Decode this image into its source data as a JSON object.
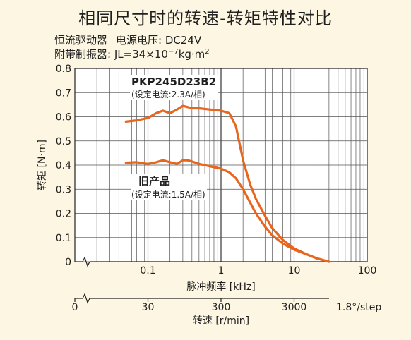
{
  "title": "相同尺寸时的转速-转矩特性对比",
  "conditions": {
    "driver_label": "恒流驱动器",
    "voltage_label": "电源电压:",
    "voltage_value": "DC24V",
    "load_label": "附带制振器:",
    "inertia_prefix": "JL=34×10",
    "inertia_exp": "−7",
    "inertia_unit": "kg·m",
    "inertia_unit_exp": "2"
  },
  "colors": {
    "background": "#fdf6e3",
    "series": "#e8651e",
    "major_grid": "#222222",
    "minor_grid": "#555555"
  },
  "chart_data": {
    "type": "line",
    "x_scale": "log",
    "xlim": [
      0.01,
      100
    ],
    "ylim": [
      0,
      0.8
    ],
    "grid": true,
    "xlabel": "脉冲频率 [kHz]",
    "ylabel": "转矩 [N·m]",
    "x_ticks": [
      "0.1",
      "1",
      "10",
      "100"
    ],
    "y_ticks": [
      "0",
      "0.1",
      "0.2",
      "0.3",
      "0.4",
      "0.5",
      "0.6",
      "0.7",
      "0.8"
    ],
    "secondary_axis": {
      "label": "转速 [r/min]",
      "ticks": [
        "0",
        "30",
        "300",
        "3000"
      ],
      "note": "1.8°/step"
    },
    "series": [
      {
        "name": "PKP245D23B2",
        "note": "(设定电流:2.3A/相)",
        "x": [
          0.05,
          0.07,
          0.1,
          0.13,
          0.16,
          0.2,
          0.25,
          0.3,
          0.35,
          0.4,
          0.5,
          0.7,
          1.0,
          1.3,
          1.6,
          2.0,
          2.5,
          3.0,
          4.0,
          5.0,
          7.0,
          10,
          15,
          20,
          30
        ],
        "values": [
          0.58,
          0.585,
          0.595,
          0.615,
          0.625,
          0.615,
          0.63,
          0.645,
          0.64,
          0.635,
          0.635,
          0.63,
          0.625,
          0.615,
          0.56,
          0.42,
          0.32,
          0.26,
          0.19,
          0.14,
          0.09,
          0.055,
          0.03,
          0.015,
          0.0
        ]
      },
      {
        "name": "旧产品",
        "note": "(设定电流:1.5A/相)",
        "x": [
          0.05,
          0.07,
          0.1,
          0.13,
          0.16,
          0.2,
          0.25,
          0.3,
          0.35,
          0.4,
          0.5,
          0.7,
          1.0,
          1.3,
          1.6,
          2.0,
          2.5,
          3.0,
          4.0,
          5.0,
          7.0,
          10,
          15,
          20,
          30
        ],
        "values": [
          0.41,
          0.412,
          0.405,
          0.412,
          0.42,
          0.412,
          0.405,
          0.42,
          0.42,
          0.415,
          0.405,
          0.395,
          0.385,
          0.37,
          0.345,
          0.3,
          0.245,
          0.2,
          0.145,
          0.11,
          0.075,
          0.05,
          0.03,
          0.015,
          0.0
        ]
      }
    ]
  }
}
